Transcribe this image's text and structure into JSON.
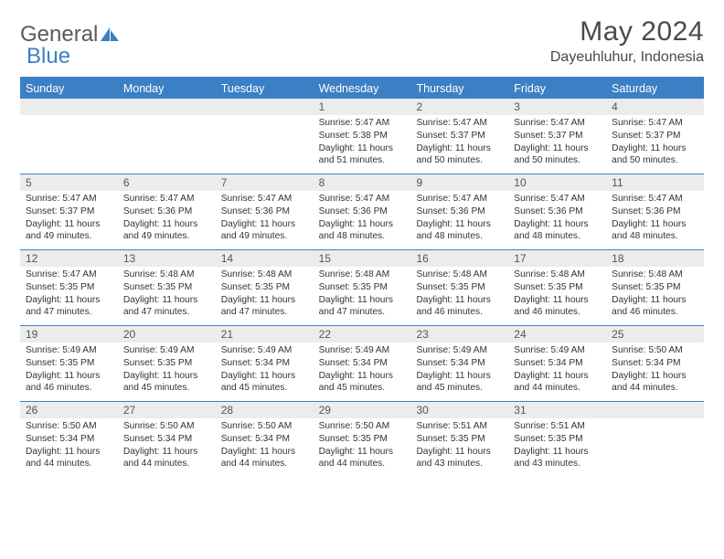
{
  "brand": {
    "text1": "General",
    "text2": "Blue"
  },
  "title": "May 2024",
  "location": "Dayeuhluhur, Indonesia",
  "colors": {
    "accent": "#3b7fc4",
    "header_text": "#ffffff",
    "daynum_bg": "#ececec",
    "text": "#333333",
    "title_text": "#4a4a4a"
  },
  "day_headers": [
    "Sunday",
    "Monday",
    "Tuesday",
    "Wednesday",
    "Thursday",
    "Friday",
    "Saturday"
  ],
  "weeks": [
    [
      {
        "n": "",
        "sr": "",
        "ss": "",
        "dl": ""
      },
      {
        "n": "",
        "sr": "",
        "ss": "",
        "dl": ""
      },
      {
        "n": "",
        "sr": "",
        "ss": "",
        "dl": ""
      },
      {
        "n": "1",
        "sr": "5:47 AM",
        "ss": "5:38 PM",
        "dl": "11 hours and 51 minutes."
      },
      {
        "n": "2",
        "sr": "5:47 AM",
        "ss": "5:37 PM",
        "dl": "11 hours and 50 minutes."
      },
      {
        "n": "3",
        "sr": "5:47 AM",
        "ss": "5:37 PM",
        "dl": "11 hours and 50 minutes."
      },
      {
        "n": "4",
        "sr": "5:47 AM",
        "ss": "5:37 PM",
        "dl": "11 hours and 50 minutes."
      }
    ],
    [
      {
        "n": "5",
        "sr": "5:47 AM",
        "ss": "5:37 PM",
        "dl": "11 hours and 49 minutes."
      },
      {
        "n": "6",
        "sr": "5:47 AM",
        "ss": "5:36 PM",
        "dl": "11 hours and 49 minutes."
      },
      {
        "n": "7",
        "sr": "5:47 AM",
        "ss": "5:36 PM",
        "dl": "11 hours and 49 minutes."
      },
      {
        "n": "8",
        "sr": "5:47 AM",
        "ss": "5:36 PM",
        "dl": "11 hours and 48 minutes."
      },
      {
        "n": "9",
        "sr": "5:47 AM",
        "ss": "5:36 PM",
        "dl": "11 hours and 48 minutes."
      },
      {
        "n": "10",
        "sr": "5:47 AM",
        "ss": "5:36 PM",
        "dl": "11 hours and 48 minutes."
      },
      {
        "n": "11",
        "sr": "5:47 AM",
        "ss": "5:36 PM",
        "dl": "11 hours and 48 minutes."
      }
    ],
    [
      {
        "n": "12",
        "sr": "5:47 AM",
        "ss": "5:35 PM",
        "dl": "11 hours and 47 minutes."
      },
      {
        "n": "13",
        "sr": "5:48 AM",
        "ss": "5:35 PM",
        "dl": "11 hours and 47 minutes."
      },
      {
        "n": "14",
        "sr": "5:48 AM",
        "ss": "5:35 PM",
        "dl": "11 hours and 47 minutes."
      },
      {
        "n": "15",
        "sr": "5:48 AM",
        "ss": "5:35 PM",
        "dl": "11 hours and 47 minutes."
      },
      {
        "n": "16",
        "sr": "5:48 AM",
        "ss": "5:35 PM",
        "dl": "11 hours and 46 minutes."
      },
      {
        "n": "17",
        "sr": "5:48 AM",
        "ss": "5:35 PM",
        "dl": "11 hours and 46 minutes."
      },
      {
        "n": "18",
        "sr": "5:48 AM",
        "ss": "5:35 PM",
        "dl": "11 hours and 46 minutes."
      }
    ],
    [
      {
        "n": "19",
        "sr": "5:49 AM",
        "ss": "5:35 PM",
        "dl": "11 hours and 46 minutes."
      },
      {
        "n": "20",
        "sr": "5:49 AM",
        "ss": "5:35 PM",
        "dl": "11 hours and 45 minutes."
      },
      {
        "n": "21",
        "sr": "5:49 AM",
        "ss": "5:34 PM",
        "dl": "11 hours and 45 minutes."
      },
      {
        "n": "22",
        "sr": "5:49 AM",
        "ss": "5:34 PM",
        "dl": "11 hours and 45 minutes."
      },
      {
        "n": "23",
        "sr": "5:49 AM",
        "ss": "5:34 PM",
        "dl": "11 hours and 45 minutes."
      },
      {
        "n": "24",
        "sr": "5:49 AM",
        "ss": "5:34 PM",
        "dl": "11 hours and 44 minutes."
      },
      {
        "n": "25",
        "sr": "5:50 AM",
        "ss": "5:34 PM",
        "dl": "11 hours and 44 minutes."
      }
    ],
    [
      {
        "n": "26",
        "sr": "5:50 AM",
        "ss": "5:34 PM",
        "dl": "11 hours and 44 minutes."
      },
      {
        "n": "27",
        "sr": "5:50 AM",
        "ss": "5:34 PM",
        "dl": "11 hours and 44 minutes."
      },
      {
        "n": "28",
        "sr": "5:50 AM",
        "ss": "5:34 PM",
        "dl": "11 hours and 44 minutes."
      },
      {
        "n": "29",
        "sr": "5:50 AM",
        "ss": "5:35 PM",
        "dl": "11 hours and 44 minutes."
      },
      {
        "n": "30",
        "sr": "5:51 AM",
        "ss": "5:35 PM",
        "dl": "11 hours and 43 minutes."
      },
      {
        "n": "31",
        "sr": "5:51 AM",
        "ss": "5:35 PM",
        "dl": "11 hours and 43 minutes."
      },
      {
        "n": "",
        "sr": "",
        "ss": "",
        "dl": ""
      }
    ]
  ],
  "labels": {
    "sunrise": "Sunrise: ",
    "sunset": "Sunset: ",
    "daylight": "Daylight: "
  }
}
